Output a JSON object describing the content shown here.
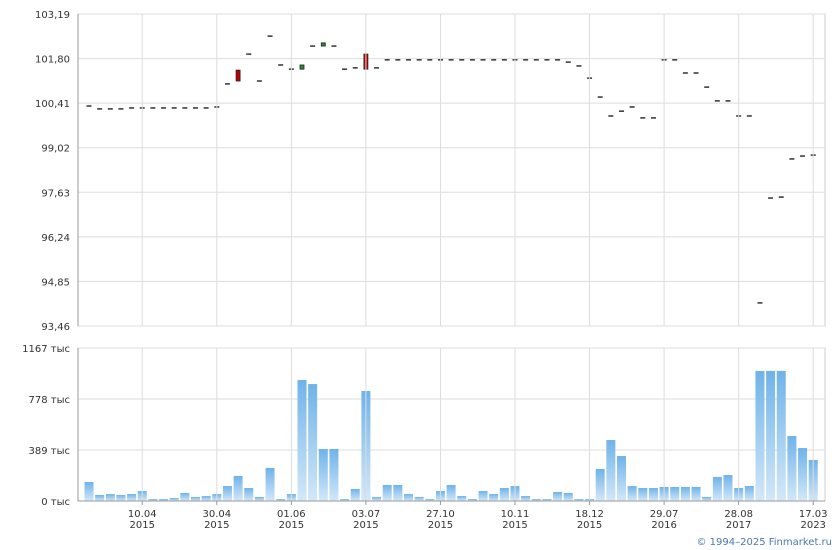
{
  "chart_data": [
    {
      "type": "candlestick",
      "open": [
        100.32,
        100.23,
        100.23,
        100.23,
        100.26,
        100.26,
        100.26,
        100.26,
        100.26,
        100.26,
        100.26,
        100.26,
        100.29,
        101.01,
        101.44,
        101.94,
        101.1,
        102.5,
        101.6,
        101.47,
        101.47,
        102.19,
        102.19,
        102.19,
        101.47,
        101.51,
        101.94,
        101.51,
        101.76,
        101.76,
        101.76,
        101.76,
        101.76,
        101.76,
        101.76,
        101.76,
        101.76,
        101.76,
        101.76,
        101.76,
        101.76,
        101.76,
        101.76,
        101.76,
        101.76,
        101.69,
        101.57,
        101.19,
        100.6,
        100.01,
        100.16,
        100.29,
        99.95,
        99.95,
        101.76,
        101.76,
        101.35,
        101.35,
        100.91,
        100.48,
        100.48,
        100.01,
        100.01,
        94.18,
        97.45,
        97.48,
        98.67,
        98.76,
        98.79
      ],
      "close": [
        100.32,
        100.23,
        100.23,
        100.23,
        100.26,
        100.26,
        100.26,
        100.26,
        100.26,
        100.26,
        100.26,
        100.26,
        100.29,
        101.01,
        101.1,
        101.94,
        101.1,
        102.5,
        101.6,
        101.47,
        101.6,
        102.19,
        102.29,
        102.19,
        101.47,
        101.51,
        101.47,
        101.51,
        101.76,
        101.76,
        101.76,
        101.76,
        101.76,
        101.76,
        101.76,
        101.76,
        101.76,
        101.76,
        101.76,
        101.76,
        101.76,
        101.76,
        101.76,
        101.76,
        101.76,
        101.69,
        101.57,
        101.19,
        100.6,
        100.01,
        100.16,
        100.29,
        99.95,
        99.95,
        101.76,
        101.76,
        101.35,
        101.35,
        100.91,
        100.48,
        100.48,
        100.01,
        100.01,
        94.18,
        97.45,
        97.48,
        98.67,
        98.76,
        98.79
      ],
      "up_color": "#2e8b2e",
      "down_color": "#c00000",
      "flat_color": "#333333",
      "ylim": [
        93.46,
        103.19
      ],
      "yticks": [
        {
          "value": 93.46,
          "label": "93,46"
        },
        {
          "value": 94.85,
          "label": "94,85"
        },
        {
          "value": 96.24,
          "label": "96,24"
        },
        {
          "value": 97.63,
          "label": "97,63"
        },
        {
          "value": 99.02,
          "label": "99,02"
        },
        {
          "value": 100.41,
          "label": "100,41"
        },
        {
          "value": 101.8,
          "label": "101,80"
        },
        {
          "value": 103.19,
          "label": "103,19"
        }
      ],
      "grid": true
    },
    {
      "type": "bar",
      "categories": [
        null,
        null,
        null,
        null,
        null,
        "10.04 2015",
        null,
        null,
        null,
        null,
        null,
        null,
        "30.04 2015",
        null,
        null,
        null,
        null,
        null,
        null,
        "01.06 2015",
        null,
        null,
        null,
        null,
        null,
        null,
        "03.07 2015",
        null,
        null,
        null,
        null,
        null,
        null,
        "27.10 2015",
        null,
        null,
        null,
        null,
        null,
        null,
        "10.11 2015",
        null,
        null,
        null,
        null,
        null,
        null,
        "18.12 2015",
        null,
        null,
        null,
        null,
        null,
        null,
        "29.07 2016",
        null,
        null,
        null,
        null,
        null,
        null,
        "28.08 2017",
        null,
        null,
        null,
        null,
        null,
        null,
        "17.03 2023"
      ],
      "values": [
        145,
        46,
        53,
        46,
        53,
        76,
        15,
        15,
        23,
        61,
        31,
        38,
        53,
        114,
        191,
        99,
        31,
        252,
        15,
        53,
        923,
        892,
        397,
        397,
        15,
        92,
        839,
        31,
        122,
        122,
        53,
        31,
        15,
        76,
        122,
        38,
        15,
        76,
        53,
        99,
        114,
        38,
        15,
        15,
        69,
        61,
        15,
        15,
        244,
        465,
        343,
        114,
        99,
        99,
        107,
        107,
        107,
        107,
        31,
        183,
        198,
        99,
        114,
        992,
        992,
        992,
        496,
        404,
        313
      ],
      "color": "#7ab9ec",
      "ylim": [
        0,
        1167
      ],
      "yticks": [
        {
          "value": 0,
          "label": "0 тыс"
        },
        {
          "value": 389,
          "label": "389 тыс"
        },
        {
          "value": 778,
          "label": "778 тыс"
        },
        {
          "value": 1167,
          "label": "1167 тыс"
        }
      ],
      "grid": true
    }
  ],
  "footer": "© 1994–2025 Finmarket.ru"
}
